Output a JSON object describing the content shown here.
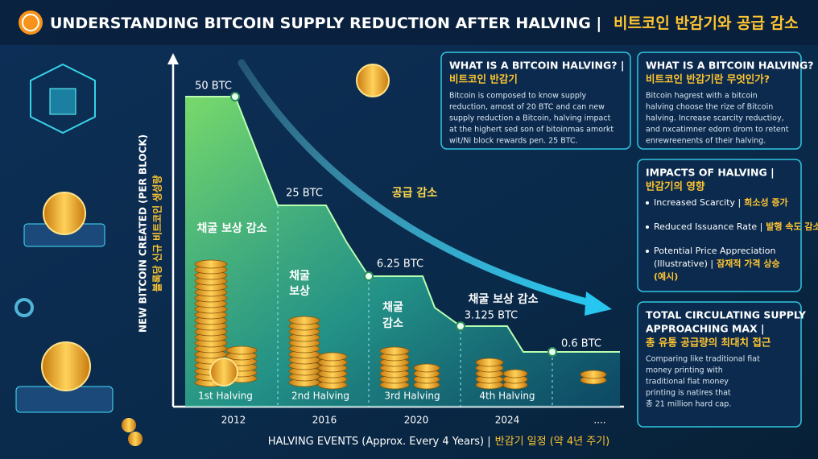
{
  "header": {
    "title_en": "UNDERSTANDING BITCOIN SUPPLY REDUCTION AFTER HALVING |",
    "title_ko": "비트코인 반감기와 공급 감소"
  },
  "chart": {
    "y_label_en": "NEW BITCOIN CREATED (PER BLOCK)",
    "y_label_ko": "블록당 신규 비트코인 생성량",
    "x_label_en": "HALVING EVENTS (Approx. Every 4 Years) |",
    "x_label_ko": "반감기 일정 (약 4년 주기)",
    "step_labels": [
      "50 BTC",
      "25 BTC",
      "6.25 BTC",
      "3.125 BTC",
      "0.6 BTC"
    ],
    "halvings": [
      "1st Halving",
      "2nd Halving",
      "3rd Halving",
      "4th Halving"
    ],
    "years": [
      "2012",
      "2016",
      "2020",
      "2024",
      "...."
    ],
    "annotations": [
      "채굴 보상 감소",
      "채굴",
      "보상",
      "채굴",
      "감소",
      "채굴 보상 감소",
      "공급 감소"
    ]
  },
  "panels": [
    {
      "title": [
        "WHAT IS A BITCOIN HALVING? |"
      ],
      "title_ko": "비트코인 반감기",
      "body": [
        "Bitcoin is composed to know supply",
        "reduction, amost of 20 BTC and can new",
        "supply reduction a Bitcoin, halving impact",
        "at the highert sed son of bitoinmas amorkt",
        "wit/Ni block rewards pen. 25 BTC."
      ]
    },
    {
      "title": [
        "WHAT IS A BITCOIN HALVING?"
      ],
      "title_ko": "비트코인 반감기란 무엇인가?",
      "body": [
        "Bitcoin hagrest with a bitcoin",
        "halving choose the rize of Bitcoin",
        "halving. Increase scarcity reductioy,",
        "and nxcatimner edorn drom to retent",
        "enrewreenents of their halving."
      ]
    },
    {
      "title": [
        "IMPACTS OF HALVING |"
      ],
      "title_ko": "반감기의 영향",
      "items": [
        {
          "en": "Increased Scarcity |",
          "ko": "희소성 증가"
        },
        {
          "en": "Reduced Issuance Rate |",
          "ko": "발행 속도 감소"
        },
        {
          "en": "Potential Price Appreciation",
          "en2": "(Illustrative) |",
          "ko": "잠재적 가격 상승",
          "ko2": "(예시)"
        }
      ]
    },
    {
      "title": [
        "TOTAL CIRCULATING SUPPLY",
        "APPROACHING MAX |"
      ],
      "title_ko": "총 유통 공급량의 최대치 접근",
      "body": [
        "Comparing like traditional fiat",
        "money printing with",
        "traditional fiat money",
        "printing is natires that",
        "총 21 million hard cap."
      ]
    }
  ]
}
